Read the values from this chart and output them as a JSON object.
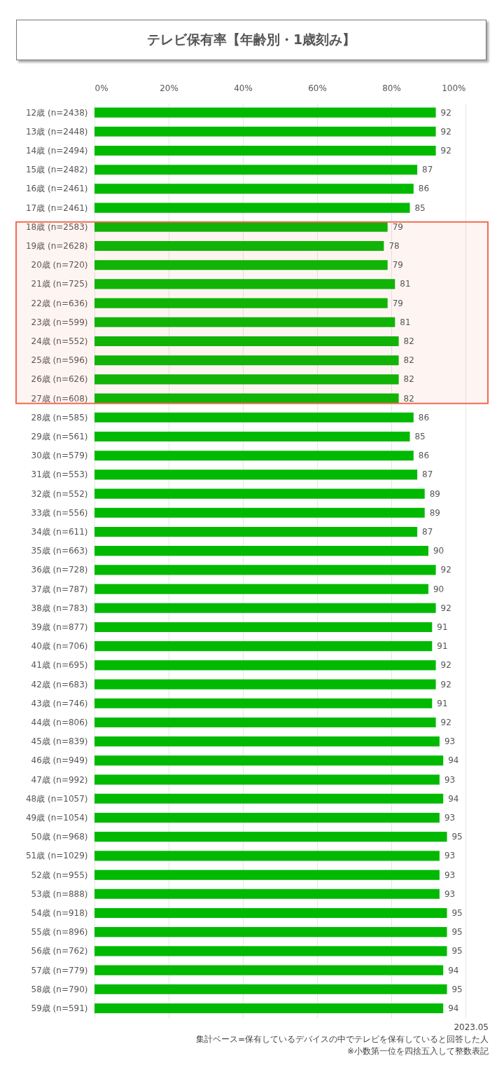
{
  "chart_data": {
    "type": "bar",
    "orientation": "horizontal",
    "title": "テレビ保有率【年齢別・1歳刻み】",
    "categories": [
      "12歳 (n=2438)",
      "13歳 (n=2448)",
      "14歳 (n=2494)",
      "15歳 (n=2482)",
      "16歳 (n=2461)",
      "17歳 (n=2461)",
      "18歳 (n=2583)",
      "19歳 (n=2628)",
      "20歳 (n=720)",
      "21歳 (n=725)",
      "22歳 (n=636)",
      "23歳 (n=599)",
      "24歳 (n=552)",
      "25歳 (n=596)",
      "26歳 (n=626)",
      "27歳 (n=608)",
      "28歳 (n=585)",
      "29歳 (n=561)",
      "30歳 (n=579)",
      "31歳 (n=553)",
      "32歳 (n=552)",
      "33歳 (n=556)",
      "34歳 (n=611)",
      "35歳 (n=663)",
      "36歳 (n=728)",
      "37歳 (n=787)",
      "38歳 (n=783)",
      "39歳 (n=877)",
      "40歳 (n=706)",
      "41歳 (n=695)",
      "42歳 (n=683)",
      "43歳 (n=746)",
      "44歳 (n=806)",
      "45歳 (n=839)",
      "46歳 (n=949)",
      "47歳 (n=992)",
      "48歳 (n=1057)",
      "49歳 (n=1054)",
      "50歳 (n=968)",
      "51歳 (n=1029)",
      "52歳 (n=955)",
      "53歳 (n=888)",
      "54歳 (n=918)",
      "55歳 (n=896)",
      "56歳 (n=762)",
      "57歳 (n=779)",
      "58歳 (n=790)",
      "59歳 (n=591)"
    ],
    "values": [
      92,
      92,
      92,
      87,
      86,
      85,
      79,
      78,
      79,
      81,
      79,
      81,
      82,
      82,
      82,
      82,
      86,
      85,
      86,
      87,
      89,
      89,
      87,
      90,
      92,
      90,
      92,
      91,
      91,
      92,
      92,
      91,
      92,
      93,
      94,
      93,
      94,
      93,
      95,
      93,
      93,
      93,
      95,
      95,
      95,
      94,
      95,
      94
    ],
    "color": "#00b900",
    "xlim": [
      0,
      100
    ],
    "xticks": [
      {
        "value": 0,
        "label": "0%"
      },
      {
        "value": 20,
        "label": "20%"
      },
      {
        "value": 40,
        "label": "40%"
      },
      {
        "value": 60,
        "label": "60%"
      },
      {
        "value": 80,
        "label": "80%"
      },
      {
        "value": 100,
        "label": "100%"
      }
    ],
    "grid": "x",
    "data_labels": true,
    "bands": [
      {
        "axis": "y",
        "from": "18歳 (n=2583)",
        "to": "27歳 (n=608)",
        "color": "#f26b50"
      }
    ],
    "annotations": [
      "2023.05",
      "集計ベース=保有しているデバイスの中でテレビを保有していると回答した人",
      "※小数第一位を四捨五入して整数表記"
    ]
  }
}
